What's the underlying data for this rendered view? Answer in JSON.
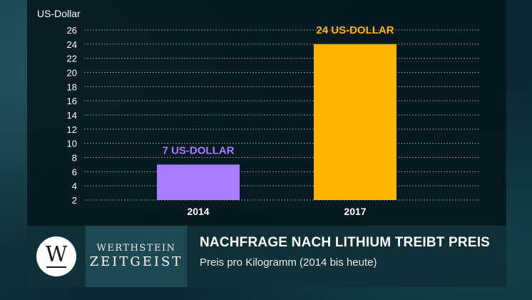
{
  "chart_data": {
    "type": "bar",
    "ylabel": "US-Dollar",
    "categories": [
      "2014",
      "2017"
    ],
    "values": [
      7,
      24
    ],
    "data_labels": [
      "7 US-DOLLAR",
      "24 US-DOLLAR"
    ],
    "bar_colors": [
      "#a97dff",
      "#ffb400"
    ],
    "yticks": [
      2,
      4,
      6,
      8,
      10,
      12,
      14,
      16,
      18,
      20,
      22,
      24,
      26
    ],
    "ylim": [
      2,
      26
    ],
    "grid": true,
    "legend": false
  },
  "footer": {
    "logo_letter": "W",
    "brand_top": "WERTHSTEIN",
    "brand_bottom": "ZEITGEIST",
    "title": "NACHFRAGE NACH LITHIUM TREIBT PREIS",
    "subtitle": "Preis pro Kilogramm (2014 bis heute)"
  },
  "colors": {
    "background": "#0d2a33",
    "grid": "#6f8f96",
    "text": "#ffffff"
  }
}
